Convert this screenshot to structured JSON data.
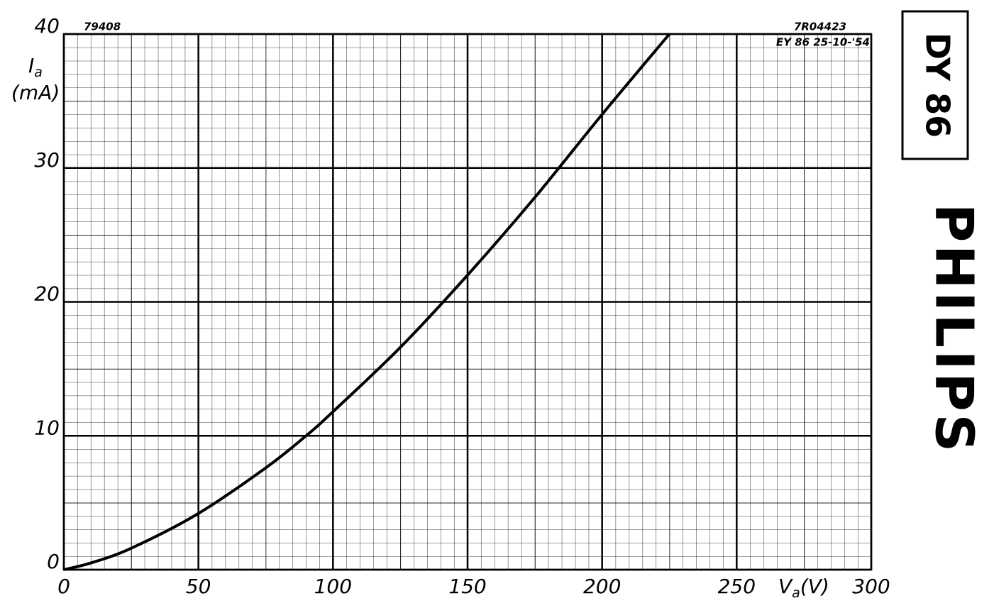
{
  "chart_data": {
    "type": "line",
    "ylabel_symbol": "I",
    "ylabel_subscript": "a",
    "ylabel_unit": "(mA)",
    "xlabel_symbol": "V",
    "xlabel_subscript": "a",
    "xlabel_unit": "(V)",
    "annotations": [
      "79408",
      "7R04423",
      "EY 86  25-10-'54"
    ],
    "tube_type": "DY 86",
    "brand": "PHILIPS",
    "x": [
      0,
      10,
      25,
      50,
      75,
      90,
      100,
      125,
      150,
      175,
      200,
      225
    ],
    "series": [
      {
        "color": "#000000",
        "values": [
          0,
          0.5,
          1.6,
          4.2,
          7.6,
          10,
          11.8,
          16.6,
          22,
          27.8,
          34,
          40
        ]
      }
    ],
    "xlim": [
      0,
      300
    ],
    "ylim": [
      0,
      40
    ],
    "xticks": [
      0,
      50,
      100,
      150,
      200,
      250,
      300
    ],
    "yticks": [
      0,
      10,
      20,
      30,
      40
    ],
    "grid": true
  }
}
